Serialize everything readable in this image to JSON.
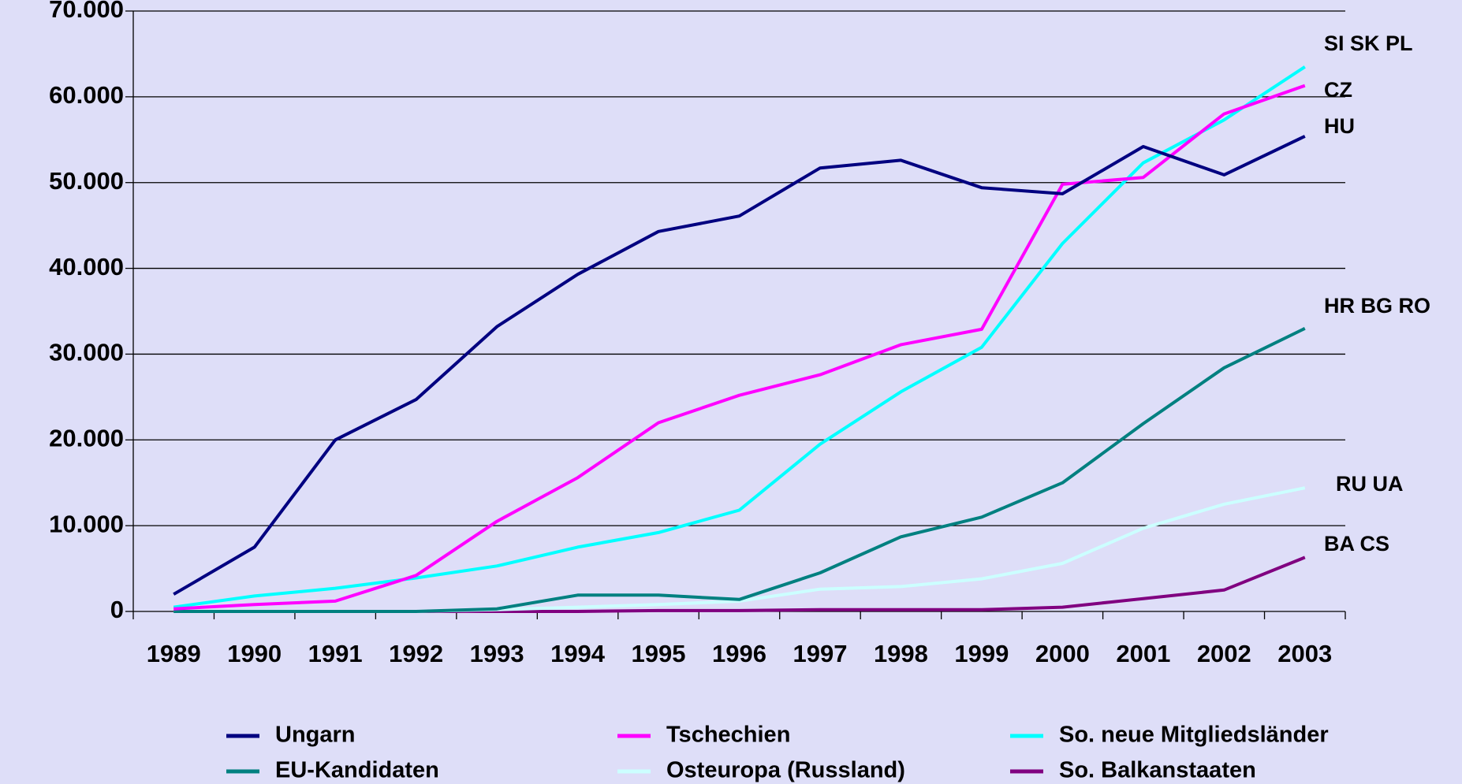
{
  "chart_data": {
    "type": "line",
    "categories": [
      "1989",
      "1990",
      "1991",
      "1992",
      "1993",
      "1994",
      "1995",
      "1996",
      "1997",
      "1998",
      "1999",
      "2000",
      "2001",
      "2002",
      "2003"
    ],
    "series": [
      {
        "name": "Ungarn",
        "color": "#000080",
        "values": [
          2000,
          7500,
          20000,
          24700,
          33200,
          39300,
          44300,
          46100,
          51700,
          52600,
          49400,
          48700,
          54200,
          50900,
          55400
        ]
      },
      {
        "name": "Tschechien",
        "color": "#ff00ff",
        "values": [
          300,
          800,
          1200,
          4200,
          10500,
          15600,
          22000,
          25200,
          27600,
          31100,
          32900,
          49800,
          50600,
          58000,
          61300
        ]
      },
      {
        "name": "So. neue Mitgliedsländer",
        "color": "#00ffff",
        "values": [
          500,
          1800,
          2700,
          3900,
          5300,
          7500,
          9200,
          11800,
          19500,
          25600,
          30800,
          42900,
          52300,
          57300,
          63500
        ]
      },
      {
        "name": "EU-Kandidaten",
        "color": "#008080",
        "values": [
          0,
          0,
          0,
          0,
          300,
          1900,
          1900,
          1400,
          4500,
          8700,
          11000,
          15000,
          21900,
          28400,
          33000
        ]
      },
      {
        "name": "Osteuropa (Russland)",
        "color": "#ccffff",
        "values": [
          0,
          0,
          0,
          0,
          200,
          500,
          800,
          1200,
          2600,
          2900,
          3800,
          5600,
          9700,
          12500,
          14400
        ]
      },
      {
        "name": "So. Balkanstaaten",
        "color": "#800080",
        "values": [
          0,
          0,
          0,
          0,
          0,
          0,
          100,
          100,
          200,
          200,
          200,
          500,
          1500,
          2500,
          6300
        ]
      }
    ],
    "ylim": [
      0,
      70000
    ],
    "yticks": [
      0,
      {
        "value": 10000,
        "label": "10.000"
      },
      {
        "value": 20000,
        "label": "20.000"
      },
      {
        "value": 30000,
        "label": "30.000"
      },
      {
        "value": 40000,
        "label": "40.000"
      },
      {
        "value": 50000,
        "label": "50.000"
      },
      {
        "value": 60000,
        "label": "60.000"
      },
      {
        "value": 70000,
        "label": "70.000"
      }
    ],
    "grid": true,
    "annotations": [
      "SI SK PL",
      "CZ",
      "HU",
      "HR BG RO",
      "RU UA",
      "BA CS"
    ]
  }
}
